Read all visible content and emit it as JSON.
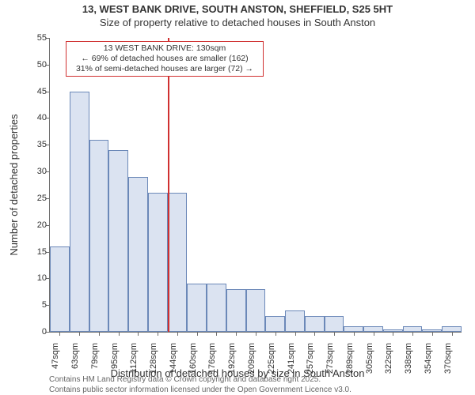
{
  "title": "13, WEST BANK DRIVE, SOUTH ANSTON, SHEFFIELD, S25 5HT",
  "subtitle": "Size of property relative to detached houses in South Anston",
  "chart": {
    "type": "histogram",
    "ylabel": "Number of detached properties",
    "xlabel": "Distribution of detached houses by size in South Anston",
    "ylim": [
      0,
      55
    ],
    "ytick_step": 5,
    "bar_fill": "#dbe3f1",
    "bar_border": "#6b88b8",
    "axis_color": "#6e6e6e",
    "background_color": "#ffffff",
    "annotation_border": "#d03030",
    "vline_color": "#d03030",
    "label_fontsize": 13,
    "tick_fontsize": 11,
    "title_fontsize": 13,
    "categories": [
      "47sqm",
      "63sqm",
      "79sqm",
      "95sqm",
      "112sqm",
      "128sqm",
      "144sqm",
      "160sqm",
      "176sqm",
      "192sqm",
      "209sqm",
      "225sqm",
      "241sqm",
      "257sqm",
      "273sqm",
      "289sqm",
      "305sqm",
      "322sqm",
      "338sqm",
      "354sqm",
      "370sqm"
    ],
    "values": [
      16,
      45,
      36,
      34,
      29,
      26,
      26,
      9,
      9,
      8,
      8,
      3,
      4,
      3,
      3,
      1,
      1,
      0.5,
      1,
      0.5,
      1
    ],
    "marker_after_bin_index": 5,
    "annotation": {
      "line1": "13 WEST BANK DRIVE: 130sqm",
      "line2": "← 69% of detached houses are smaller (162)",
      "line3": "31% of semi-detached houses are larger (72) →"
    }
  },
  "footer": {
    "line1": "Contains HM Land Registry data © Crown copyright and database right 2025.",
    "line2": "Contains public sector information licensed under the Open Government Licence v3.0."
  }
}
